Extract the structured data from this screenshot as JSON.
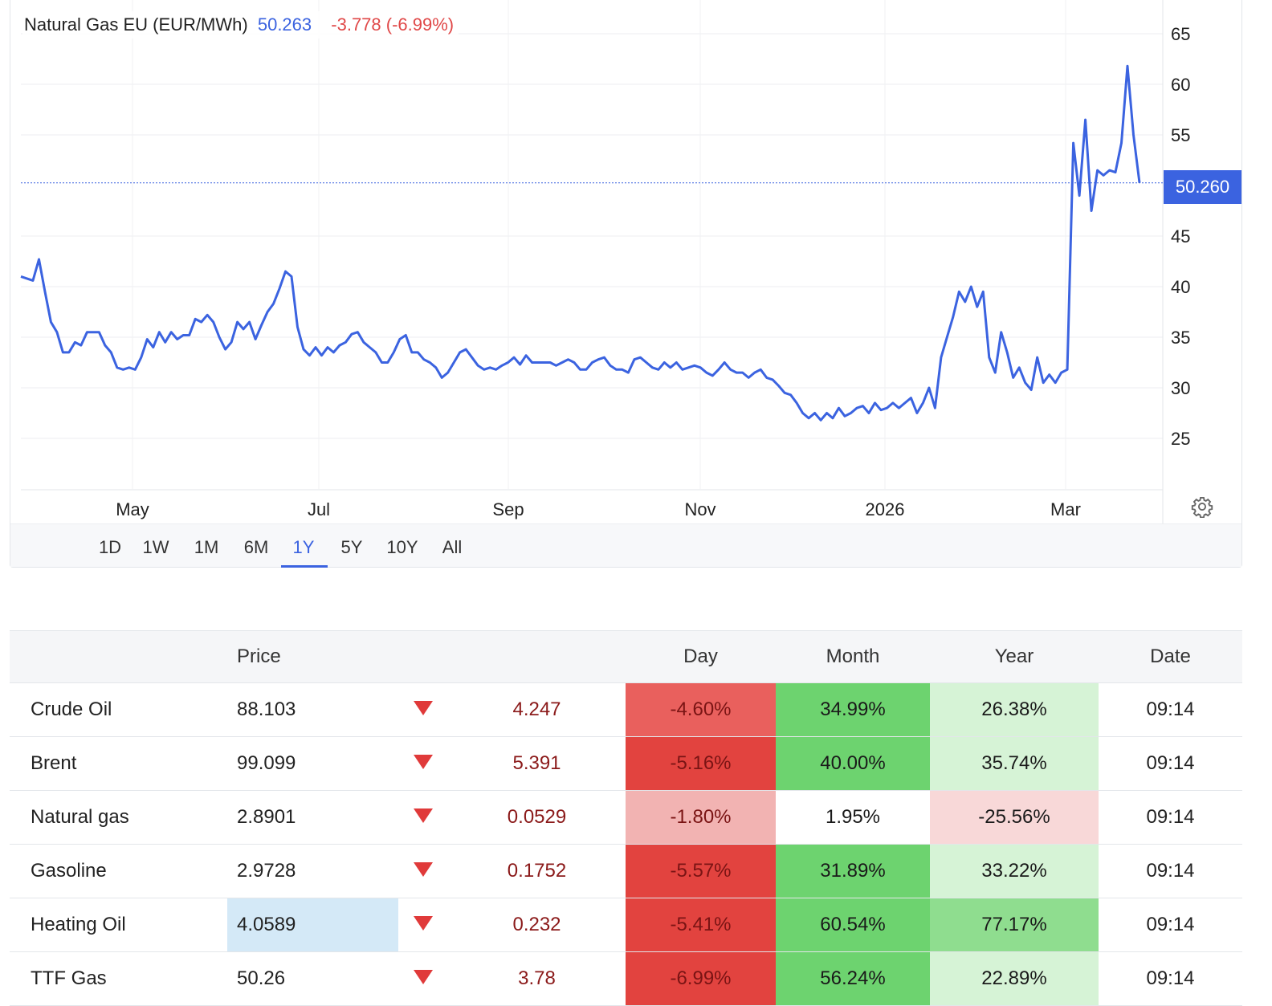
{
  "legend": {
    "symbol": "Natural Gas EU (EUR/MWh)",
    "price": "50.263",
    "change": "-3.778 (-6.99%)"
  },
  "price_tag": "50.260",
  "colors": {
    "line": "#3b63e0",
    "down": "#e03a3a",
    "accent": "#3b63e0"
  },
  "range_buttons": [
    "1D",
    "1W",
    "1M",
    "6M",
    "1Y",
    "5Y",
    "10Y",
    "All"
  ],
  "active_range": "1Y",
  "icons": {
    "settings": "gear-icon",
    "down": "triangle-down-icon"
  },
  "chart_data": {
    "type": "line",
    "title": "Natural Gas EU (EUR/MWh)",
    "x_tick_labels": [
      "May",
      "Jul",
      "Sep",
      "Nov",
      "2026",
      "Mar"
    ],
    "y_ticks": [
      25,
      30,
      35,
      40,
      45,
      55,
      60,
      65
    ],
    "ylim": [
      20,
      66
    ],
    "last_value": 50.26,
    "grid": true,
    "series": [
      {
        "values": [
          41,
          40.8,
          40.6,
          42.7,
          39.5,
          36.5,
          35.5,
          33.5,
          33.5,
          34.5,
          34.2,
          35.5,
          35.5,
          35.5,
          34.2,
          33.5,
          32,
          31.8,
          32,
          31.8,
          33,
          34.8,
          34,
          35.5,
          34.5,
          35.5,
          34.8,
          35.2,
          35.2,
          36.8,
          36.5,
          37.2,
          36.5,
          35,
          33.8,
          34.5,
          36.5,
          35.8,
          36.5,
          34.8,
          36.2,
          37.5,
          38.3,
          39.8,
          41.5,
          41,
          36,
          33.8,
          33.2,
          34,
          33.2,
          34,
          33.5,
          34.2,
          34.5,
          35.3,
          35.5,
          34.5,
          34,
          33.5,
          32.5,
          32.5,
          33.5,
          34.8,
          35.2,
          33.5,
          33.5,
          32.8,
          32.5,
          32,
          31,
          31.5,
          32.5,
          33.5,
          33.8,
          33,
          32.2,
          31.8,
          32,
          31.8,
          32.2,
          32.5,
          33,
          32.3,
          33.2,
          32.5,
          32.5,
          32.5,
          32.5,
          32.2,
          32.5,
          32.8,
          32.5,
          31.8,
          31.8,
          32.5,
          32.8,
          33,
          32.2,
          31.8,
          31.8,
          31.5,
          32.8,
          33,
          32.5,
          32,
          31.8,
          32.5,
          32,
          32.5,
          31.8,
          32,
          32.2,
          32,
          31.5,
          31.2,
          31.8,
          32.5,
          31.8,
          31.5,
          31.5,
          31,
          31.5,
          31.8,
          31,
          30.8,
          30.2,
          29.5,
          29.3,
          28.5,
          27.5,
          27,
          27.5,
          26.8,
          27.5,
          27,
          28,
          27.2,
          27.5,
          28,
          28.2,
          27.5,
          28.5,
          27.8,
          28,
          28.5,
          28,
          28.5,
          29,
          27.5,
          28.5,
          30,
          28,
          33,
          35,
          37,
          39.5,
          38.5,
          40,
          38,
          39.5,
          33,
          31.5,
          35.5,
          33.5,
          31,
          32,
          30.5,
          29.8,
          33,
          30.5,
          31.3,
          30.5,
          31.5,
          31.8,
          54.2,
          49,
          56.5,
          47.5,
          51.5,
          51,
          51.5,
          51.3,
          54.2,
          61.8,
          55,
          50.263
        ]
      }
    ]
  },
  "table": {
    "headers": [
      "",
      "Price",
      "",
      "",
      "Day",
      "Month",
      "Year",
      "Date"
    ],
    "rows": [
      {
        "name": "Crude Oil",
        "price": "88.103",
        "change": "4.247",
        "day": "-4.60%",
        "month": "34.99%",
        "year": "26.38%",
        "date": "09:14"
      },
      {
        "name": "Brent",
        "price": "99.099",
        "change": "5.391",
        "day": "-5.16%",
        "month": "40.00%",
        "year": "35.74%",
        "date": "09:14"
      },
      {
        "name": "Natural gas",
        "price": "2.8901",
        "change": "0.0529",
        "day": "-1.80%",
        "month": "1.95%",
        "year": "-25.56%",
        "date": "09:14"
      },
      {
        "name": "Gasoline",
        "price": "2.9728",
        "change": "0.1752",
        "day": "-5.57%",
        "month": "31.89%",
        "year": "33.22%",
        "date": "09:14"
      },
      {
        "name": "Heating Oil",
        "price": "4.0589",
        "change": "0.232",
        "day": "-5.41%",
        "month": "60.54%",
        "year": "77.17%",
        "date": "09:14"
      },
      {
        "name": "TTF Gas",
        "price": "50.26",
        "change": "3.78",
        "day": "-6.99%",
        "month": "56.24%",
        "year": "22.89%",
        "date": "09:14"
      }
    ],
    "cell_colors": {
      "day": [
        "#e9605d",
        "#e2433f",
        "#f2b3b2",
        "#e2433f",
        "#e2433f",
        "#e2433f"
      ],
      "month": [
        "#6dd36f",
        "#6dd36f",
        "#ffffff",
        "#6dd36f",
        "#6dd36f",
        "#6dd36f"
      ],
      "year": [
        "#d6f3d6",
        "#d6f3d6",
        "#f8d8d8",
        "#d6f3d6",
        "#8fdd8f",
        "#d6f3d6"
      ]
    },
    "highlighted_cell": "Heating Oil price"
  }
}
